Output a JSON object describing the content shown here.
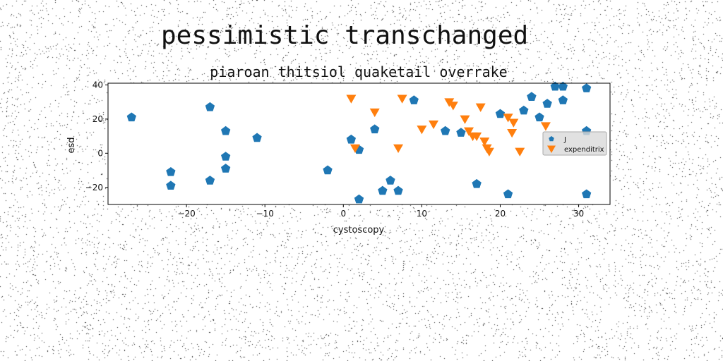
{
  "figure": {
    "suptitle": "pessimistic transchanged"
  },
  "chart_data": {
    "type": "scatter",
    "title": "piaroan thitsiol quaketail overrake",
    "xlabel": "cystoscopy",
    "ylabel": "esd",
    "xlim": [
      -30,
      34
    ],
    "ylim": [
      -30,
      41
    ],
    "xticks": [
      -20,
      -10,
      0,
      10,
      20,
      30
    ],
    "yticks": [
      -20,
      0,
      20,
      40
    ],
    "grid": false,
    "legend": "right",
    "series": [
      {
        "name": "J",
        "marker": "pentagon",
        "color": "#1f77b4",
        "points": [
          [
            -27,
            21
          ],
          [
            -22,
            -11
          ],
          [
            -22,
            -19
          ],
          [
            -17,
            27
          ],
          [
            -17,
            -16
          ],
          [
            -15,
            13
          ],
          [
            -15,
            -2
          ],
          [
            -15,
            -9
          ],
          [
            -11,
            9
          ],
          [
            -2,
            -10
          ],
          [
            1,
            8
          ],
          [
            2,
            2
          ],
          [
            2,
            -27
          ],
          [
            4,
            14
          ],
          [
            5,
            -22
          ],
          [
            6,
            -16
          ],
          [
            7,
            -22
          ],
          [
            9,
            31
          ],
          [
            13,
            13
          ],
          [
            15,
            12
          ],
          [
            17,
            -18
          ],
          [
            20,
            23
          ],
          [
            21,
            -24
          ],
          [
            23,
            25
          ],
          [
            24,
            33
          ],
          [
            25,
            21
          ],
          [
            26,
            29
          ],
          [
            27,
            39
          ],
          [
            28,
            39
          ],
          [
            28,
            31
          ],
          [
            31,
            38
          ],
          [
            31,
            13
          ],
          [
            31,
            -24
          ]
        ]
      },
      {
        "name": "expenditrix",
        "marker": "triangle-down",
        "color": "#ff7f0e",
        "points": [
          [
            1,
            32
          ],
          [
            1.5,
            3
          ],
          [
            4,
            24
          ],
          [
            7,
            3
          ],
          [
            7.5,
            32
          ],
          [
            10,
            14
          ],
          [
            11.5,
            17
          ],
          [
            13.5,
            30
          ],
          [
            14,
            28
          ],
          [
            15.5,
            20
          ],
          [
            16,
            13
          ],
          [
            16.5,
            10
          ],
          [
            17,
            10
          ],
          [
            17.5,
            27
          ],
          [
            18,
            7
          ],
          [
            18.3,
            3
          ],
          [
            18.6,
            1
          ],
          [
            21,
            21
          ],
          [
            21.5,
            12
          ],
          [
            21.7,
            18
          ],
          [
            22.5,
            1
          ],
          [
            25.8,
            16
          ]
        ]
      }
    ]
  }
}
